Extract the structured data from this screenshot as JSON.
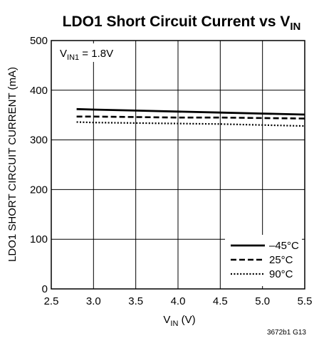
{
  "chart_data": {
    "type": "line",
    "title": {
      "main": "LDO1 Short Circuit Current vs V",
      "sub": "IN"
    },
    "xlabel": {
      "main": "V",
      "sub": "IN",
      "unit": " (V)"
    },
    "ylabel": "LDO1 SHORT CIRCUIT CURRENT (mA)",
    "annotation": {
      "main": "V",
      "sub": "IN1",
      "rest": " = 1.8V"
    },
    "figure_id": "3672b1 G13",
    "xlim": [
      2.5,
      5.5
    ],
    "ylim": [
      0,
      500
    ],
    "x_ticks": [
      2.5,
      3.0,
      3.5,
      4.0,
      4.5,
      5.0,
      5.5
    ],
    "x_tick_labels": [
      "2.5",
      "3.0",
      "3.5",
      "4.0",
      "4.5",
      "5.0",
      "5.5"
    ],
    "y_ticks": [
      0,
      100,
      200,
      300,
      400,
      500
    ],
    "y_tick_labels": [
      "0",
      "100",
      "200",
      "300",
      "400",
      "500"
    ],
    "grid": true,
    "legend_position": "bottom-right",
    "series": [
      {
        "name": "–45°C",
        "style": "solid",
        "x": [
          2.8,
          3.0,
          3.5,
          4.0,
          4.5,
          5.0,
          5.5
        ],
        "y": [
          362,
          361,
          359,
          357,
          355,
          353,
          351
        ]
      },
      {
        "name": "25°C",
        "style": "dashed",
        "x": [
          2.8,
          3.0,
          3.5,
          4.0,
          4.5,
          5.0,
          5.5
        ],
        "y": [
          347,
          347,
          346,
          345,
          345,
          344,
          343
        ]
      },
      {
        "name": "90°C",
        "style": "dotted",
        "x": [
          2.8,
          3.0,
          3.5,
          4.0,
          4.5,
          5.0,
          5.5
        ],
        "y": [
          336,
          335,
          334,
          333,
          332,
          330,
          328
        ]
      }
    ]
  }
}
